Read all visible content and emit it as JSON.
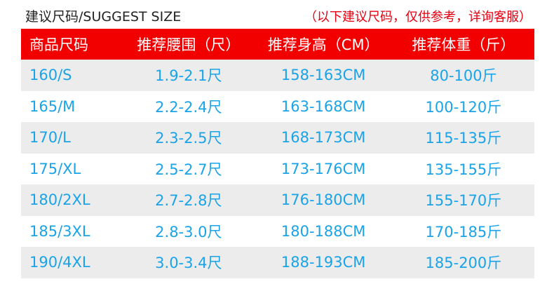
{
  "title": "建议尺码/SUGGEST SIZE",
  "note": "（以下建议尺码，仅供参考，详询客服）",
  "headers": [
    "商品尺码",
    "推荐腰围（尺）",
    "推荐身高（CM）",
    "推荐体重（斤）"
  ],
  "rows": [
    [
      "160/S",
      "1.9-2.1尺",
      "158-163CM",
      "80-100斤"
    ],
    [
      "165/M",
      "2.2-2.4尺",
      "163-168CM",
      "100-120斤"
    ],
    [
      "170/L",
      "2.3-2.5尺",
      "168-173CM",
      "115-135斤"
    ],
    [
      "175/XL",
      "2.5-2.7尺",
      "173-176CM",
      "135-155斤"
    ],
    [
      "180/2XL",
      "2.7-2.8尺",
      "176-180CM",
      "155-170斤"
    ],
    [
      "185/3XL",
      "2.8-3.0尺",
      "180-188CM",
      "170-185斤"
    ],
    [
      "190/4XL",
      "3.0-3.4尺",
      "188-193CM",
      "185-200斤"
    ]
  ],
  "colors": {
    "header": "#f20000",
    "text": "#1aa3e8",
    "stripe": "#ececec"
  }
}
